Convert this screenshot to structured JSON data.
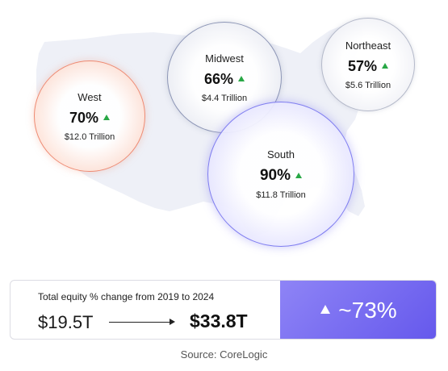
{
  "chart_data": {
    "type": "bubble",
    "metric": "Total equity % change from 2019 to 2024",
    "regions": [
      {
        "name": "West",
        "change_pct": "70%",
        "direction": "up",
        "equity": "$12.0 Trillion",
        "color": "#ee8a72"
      },
      {
        "name": "Midwest",
        "change_pct": "66%",
        "direction": "up",
        "equity": "$4.4 Trillion",
        "color": "#8c95b5"
      },
      {
        "name": "Northeast",
        "change_pct": "57%",
        "direction": "up",
        "equity": "$5.6 Trillion",
        "color": "#b4b9c9"
      },
      {
        "name": "South",
        "change_pct": "90%",
        "direction": "up",
        "equity": "$11.8 Trillion",
        "color": "#7e7cf0"
      }
    ]
  },
  "summary": {
    "caption": "Total equity % change from 2019 to 2024",
    "from_value": "$19.5T",
    "to_value": "$33.8T",
    "change": "~73%",
    "accent_color": "#6558ec"
  },
  "source": "Source: CoreLogic",
  "colors": {
    "up_indicator": "#28a745",
    "map_fill": "#eef0f7"
  }
}
